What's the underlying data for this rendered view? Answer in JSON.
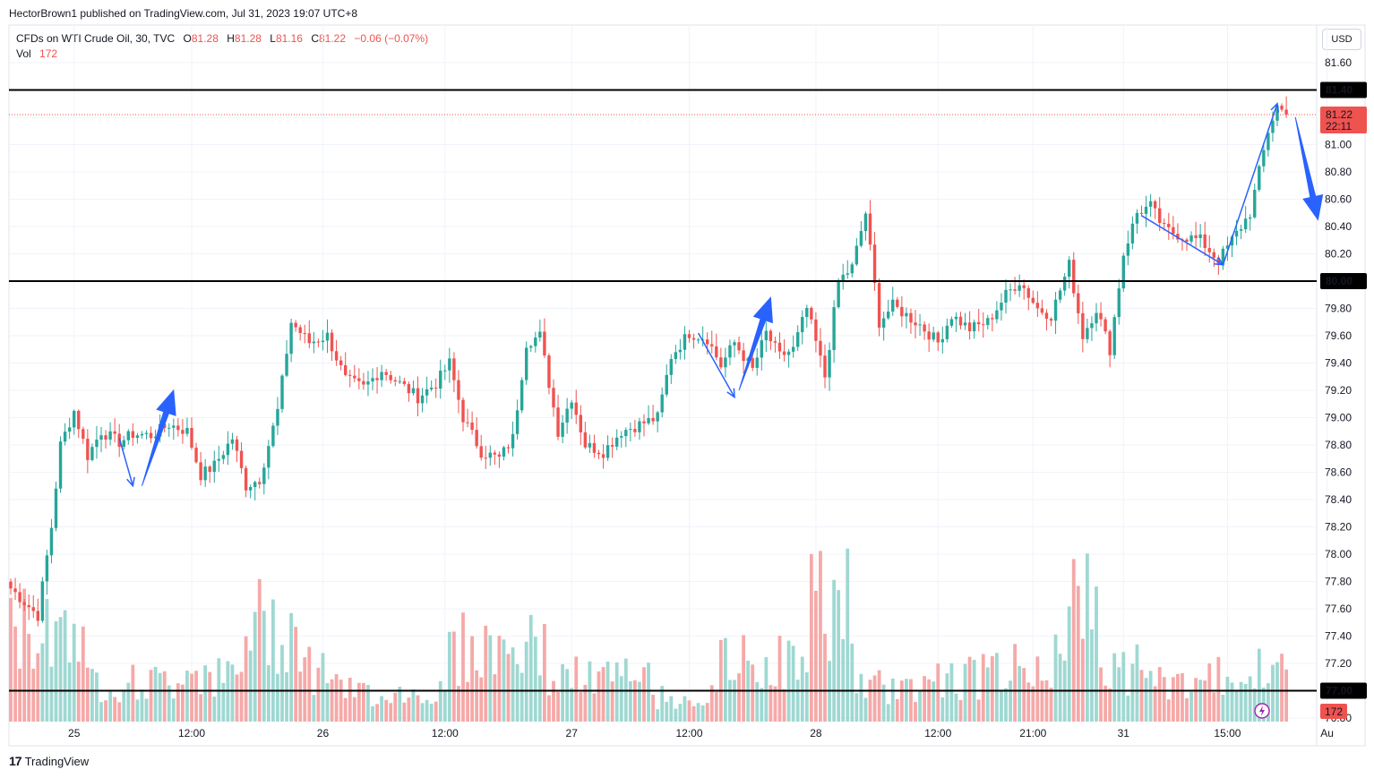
{
  "header": {
    "published": "HectorBrown1 published on TradingView.com, Jul 31, 2023 19:07 UTC+8"
  },
  "legend": {
    "symbol": "CFDs on WTI Crude Oil, 30, TVC",
    "o_label": "O",
    "o": "81.28",
    "h_label": "H",
    "h": "81.28",
    "l_label": "L",
    "l": "81.16",
    "c_label": "C",
    "c": "81.22",
    "change": "−0.06 (−0.07%)",
    "vol_label": "Vol",
    "vol": "172"
  },
  "currency": "USD",
  "price_badge": {
    "price": "81.22",
    "countdown": "22:11"
  },
  "vol_badge": "172",
  "footer": {
    "brand": "TradingView"
  },
  "colors": {
    "up": "#26a69a",
    "down": "#ef5350",
    "up_vol": "#9fd8d2",
    "down_vol": "#f5a9a8",
    "arrow": "#2962ff",
    "line": "#000000"
  },
  "chart_data": {
    "type": "candlestick",
    "symbol": "CFDs on WTI Crude Oil",
    "interval": "30",
    "ylim": [
      76.9,
      81.75
    ],
    "y_ticks": [
      "81.60",
      "81.40",
      "81.20",
      "81.00",
      "80.80",
      "80.60",
      "80.40",
      "80.20",
      "80.00",
      "79.80",
      "79.60",
      "79.40",
      "79.20",
      "79.00",
      "78.80",
      "78.60",
      "78.40",
      "78.20",
      "78.00",
      "77.80",
      "77.60",
      "77.40",
      "77.20",
      "77.00",
      "76.80"
    ],
    "x_ticks": [
      "25",
      "12:00",
      "26",
      "12:00",
      "27",
      "12:00",
      "28",
      "12:00",
      "21:00",
      "31",
      "15:00",
      "Au"
    ],
    "horizontal_lines": [
      81.4,
      80.0,
      77.0
    ],
    "last_price": 81.22,
    "anchors": [
      [
        0,
        77.75
      ],
      [
        6,
        77.55
      ],
      [
        9,
        78.2
      ],
      [
        11,
        78.8
      ],
      [
        14,
        79.05
      ],
      [
        17,
        78.72
      ],
      [
        20,
        78.9
      ],
      [
        24,
        78.82
      ],
      [
        27,
        78.88
      ],
      [
        31,
        78.87
      ],
      [
        35,
        78.95
      ],
      [
        39,
        78.9
      ],
      [
        42,
        78.58
      ],
      [
        45,
        78.65
      ],
      [
        49,
        78.85
      ],
      [
        52,
        78.5
      ],
      [
        55,
        78.55
      ],
      [
        59,
        79.05
      ],
      [
        62,
        79.7
      ],
      [
        66,
        79.55
      ],
      [
        70,
        79.6
      ],
      [
        74,
        79.28
      ],
      [
        78,
        79.22
      ],
      [
        82,
        79.35
      ],
      [
        86,
        79.25
      ],
      [
        90,
        79.15
      ],
      [
        94,
        79.25
      ],
      [
        97,
        79.4
      ],
      [
        100,
        79.0
      ],
      [
        104,
        78.75
      ],
      [
        108,
        78.7
      ],
      [
        111,
        78.85
      ],
      [
        114,
        79.55
      ],
      [
        117,
        79.6
      ],
      [
        121,
        78.9
      ],
      [
        124,
        79.15
      ],
      [
        127,
        78.8
      ],
      [
        131,
        78.75
      ],
      [
        135,
        78.9
      ],
      [
        139,
        78.95
      ],
      [
        143,
        79.0
      ],
      [
        146,
        79.45
      ],
      [
        150,
        79.62
      ],
      [
        154,
        79.58
      ],
      [
        157,
        79.38
      ],
      [
        160,
        79.55
      ],
      [
        164,
        79.35
      ],
      [
        167,
        79.62
      ],
      [
        170,
        79.45
      ],
      [
        173,
        79.5
      ],
      [
        176,
        79.8
      ],
      [
        180,
        79.3
      ],
      [
        183,
        80.0
      ],
      [
        186,
        80.1
      ],
      [
        189,
        80.5
      ],
      [
        192,
        79.7
      ],
      [
        195,
        79.82
      ],
      [
        198,
        79.75
      ],
      [
        201,
        79.68
      ],
      [
        205,
        79.55
      ],
      [
        208,
        79.75
      ],
      [
        212,
        79.65
      ],
      [
        216,
        79.7
      ],
      [
        220,
        79.9
      ],
      [
        223,
        80.0
      ],
      [
        227,
        79.8
      ],
      [
        230,
        79.75
      ],
      [
        234,
        80.12
      ],
      [
        237,
        79.6
      ],
      [
        240,
        79.8
      ],
      [
        243,
        79.5
      ],
      [
        246,
        80.2
      ],
      [
        249,
        80.5
      ],
      [
        252,
        80.55
      ],
      [
        255,
        80.38
      ],
      [
        259,
        80.33
      ],
      [
        263,
        80.3
      ],
      [
        267,
        80.15
      ],
      [
        270,
        80.3
      ],
      [
        274,
        80.5
      ],
      [
        276,
        80.8
      ],
      [
        278,
        81.1
      ],
      [
        280,
        81.28
      ],
      [
        282,
        81.22
      ]
    ],
    "volume": [
      {
        "range": [
          0,
          8
        ],
        "level": 190
      },
      {
        "range": [
          9,
          16
        ],
        "level": 210
      },
      {
        "range": [
          17,
          22
        ],
        "level": 80
      },
      {
        "range": [
          23,
          36
        ],
        "level": 80
      },
      {
        "range": [
          37,
          44
        ],
        "level": 110
      },
      {
        "range": [
          45,
          51
        ],
        "level": 90
      },
      {
        "range": [
          52,
          64
        ],
        "level": 200
      },
      {
        "range": [
          65,
          72
        ],
        "level": 110
      },
      {
        "range": [
          73,
          96
        ],
        "level": 60
      },
      {
        "range": [
          97,
          118
        ],
        "level": 150
      },
      {
        "range": [
          119,
          142
        ],
        "level": 90
      },
      {
        "range": [
          143,
          156
        ],
        "level": 50
      },
      {
        "range": [
          157,
          166
        ],
        "level": 120
      },
      {
        "range": [
          167,
          176
        ],
        "level": 120
      },
      {
        "range": [
          177,
          186
        ],
        "level": 250
      },
      {
        "range": [
          187,
          200
        ],
        "level": 70
      },
      {
        "range": [
          201,
          214
        ],
        "level": 90
      },
      {
        "range": [
          215,
          230
        ],
        "level": 110
      },
      {
        "range": [
          231,
          240
        ],
        "level": 230
      },
      {
        "range": [
          241,
          250
        ],
        "level": 110
      },
      {
        "range": [
          251,
          266
        ],
        "level": 80
      },
      {
        "range": [
          267,
          282
        ],
        "level": 100
      }
    ],
    "annotations": [
      {
        "type": "thin-arrow",
        "from": [
          24,
          78.85
        ],
        "to": [
          27,
          78.5
        ]
      },
      {
        "type": "bold-arrow",
        "from": [
          29,
          78.5
        ],
        "to": [
          36,
          79.2
        ]
      },
      {
        "type": "thin-arrow",
        "from": [
          152,
          79.62
        ],
        "to": [
          160,
          79.15
        ]
      },
      {
        "type": "bold-arrow",
        "from": [
          161,
          79.2
        ],
        "to": [
          168,
          79.88
        ]
      },
      {
        "type": "thin-arrow",
        "from": [
          250,
          80.48
        ],
        "to": [
          268,
          80.12
        ]
      },
      {
        "type": "thin-arrow",
        "from": [
          268,
          80.12
        ],
        "to": [
          280,
          81.3
        ]
      },
      {
        "type": "bold-arrow",
        "from": [
          284,
          81.2
        ],
        "to": [
          289,
          80.45
        ]
      }
    ]
  }
}
